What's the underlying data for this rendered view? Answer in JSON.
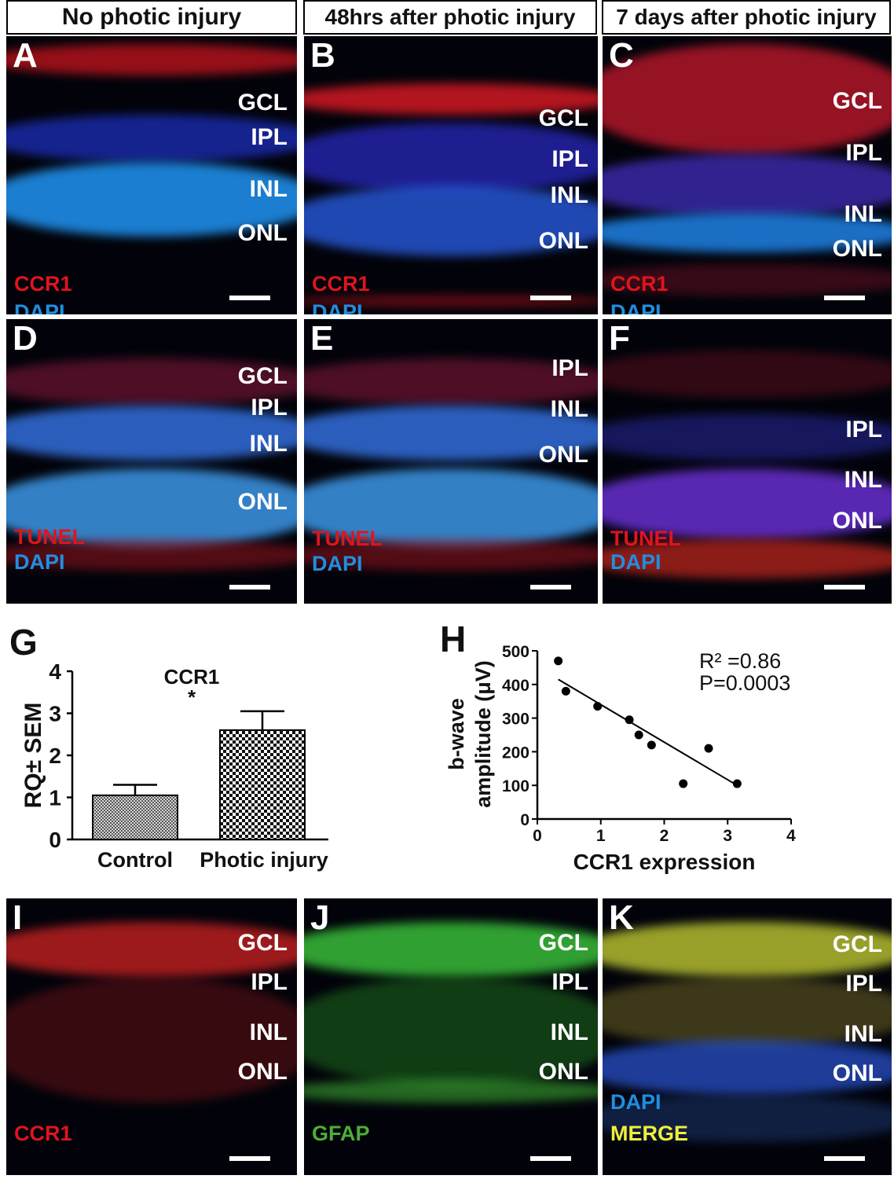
{
  "headers": [
    "No photic injury",
    "48hrs after photic injury",
    "7 days after photic injury"
  ],
  "colors": {
    "ccr1": "#e0141c",
    "dapi": "#1f8fe0",
    "tunel": "#e0141c",
    "gfap": "#4caf34",
    "merge": "#f0ee3a",
    "panel_bg": "#02030a"
  },
  "panels": [
    {
      "letter": "A",
      "layers": [
        "GCL",
        "IPL",
        "INL",
        "ONL"
      ],
      "stain1": "CCR1",
      "stain2": "DAPI"
    },
    {
      "letter": "B",
      "layers": [
        "GCL",
        "IPL",
        "INL",
        "ONL"
      ],
      "stain1": "CCR1",
      "stain2": "DAPI"
    },
    {
      "letter": "C",
      "layers": [
        "GCL",
        "IPL",
        "INL",
        "ONL"
      ],
      "stain1": "CCR1",
      "stain2": "DAPI"
    },
    {
      "letter": "D",
      "layers": [
        "GCL",
        "IPL",
        "INL",
        "ONL"
      ],
      "stain1": "TUNEL",
      "stain2": "DAPI"
    },
    {
      "letter": "E",
      "layers": [
        "IPL",
        "INL",
        "ONL"
      ],
      "stain1": "TUNEL",
      "stain2": "DAPI"
    },
    {
      "letter": "F",
      "layers": [
        "IPL",
        "INL",
        "ONL"
      ],
      "stain1": "TUNEL",
      "stain2": "DAPI"
    },
    {
      "letter": "I",
      "layers": [
        "GCL",
        "IPL",
        "INL",
        "ONL"
      ],
      "stain1": "CCR1",
      "stain2": ""
    },
    {
      "letter": "J",
      "layers": [
        "GCL",
        "IPL",
        "INL",
        "ONL"
      ],
      "stain1": "GFAP",
      "stain2": ""
    },
    {
      "letter": "K",
      "layers": [
        "GCL",
        "IPL",
        "INL",
        "ONL"
      ],
      "stain1": "DAPI",
      "stain2": "MERGE"
    }
  ],
  "chart_data": [
    {
      "panel_letter": "G",
      "type": "bar",
      "title": "CCR1",
      "ylabel": "RQ± SEM",
      "xlabel": "",
      "categories": [
        "Control",
        "Photic injury"
      ],
      "values": [
        1.05,
        2.6
      ],
      "errors": [
        0.25,
        0.45
      ],
      "significance": "*",
      "ylim": [
        0,
        4
      ],
      "yticks": [
        0,
        1,
        2,
        3,
        4
      ]
    },
    {
      "panel_letter": "H",
      "type": "scatter",
      "xlabel": "CCR1 expression",
      "ylabel_line1": "b-wave",
      "ylabel_line2": "amplitude (μV)",
      "xlim": [
        0,
        4
      ],
      "ylim": [
        0,
        500
      ],
      "xticks": [
        0,
        1,
        2,
        3,
        4
      ],
      "yticks": [
        0,
        100,
        200,
        300,
        400,
        500
      ],
      "points": [
        {
          "x": 0.33,
          "y": 470
        },
        {
          "x": 0.45,
          "y": 380
        },
        {
          "x": 0.95,
          "y": 335
        },
        {
          "x": 1.45,
          "y": 295
        },
        {
          "x": 1.6,
          "y": 250
        },
        {
          "x": 1.8,
          "y": 220
        },
        {
          "x": 2.3,
          "y": 105
        },
        {
          "x": 2.7,
          "y": 210
        },
        {
          "x": 3.15,
          "y": 105
        }
      ],
      "fit": {
        "x": [
          0.33,
          3.15
        ],
        "y": [
          415,
          100
        ]
      },
      "annotation_r2": "R² =0.86",
      "annotation_p": "P=0.0003"
    }
  ]
}
